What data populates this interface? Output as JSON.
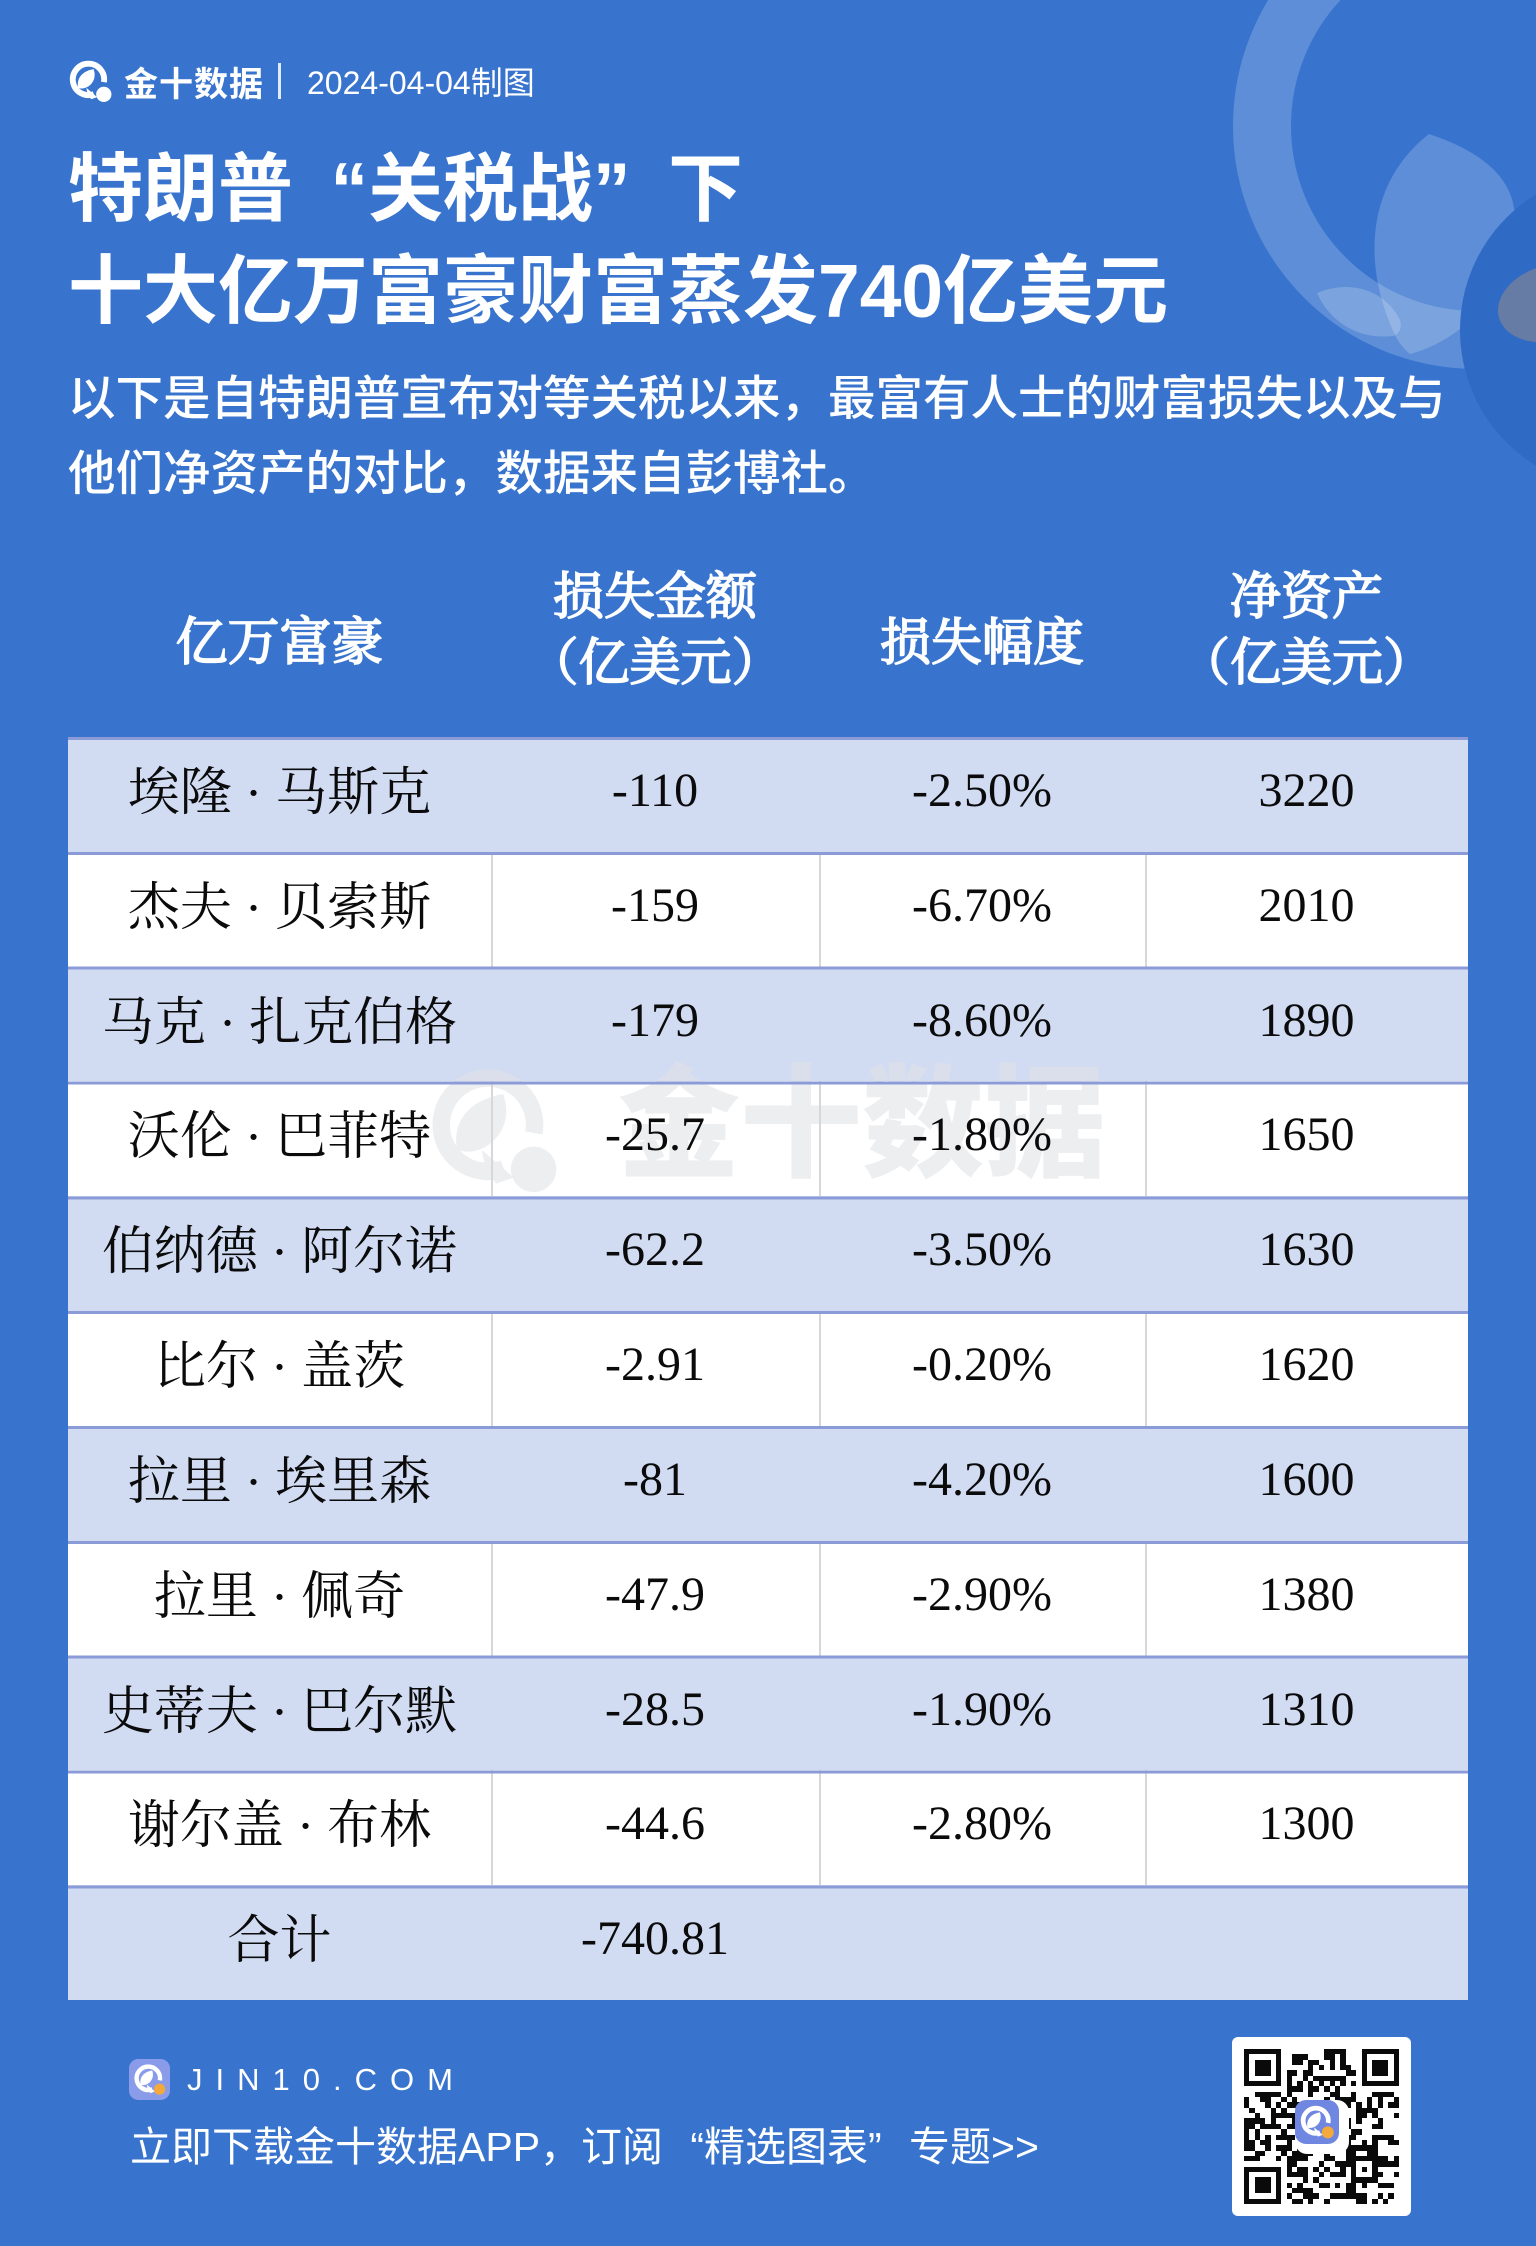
{
  "brand": {
    "name": "金十数据",
    "date_note": "2024-04-04制图"
  },
  "title_lines": [
    "特朗普“关税战”下",
    "十大亿万富豪财富蒸发740亿美元"
  ],
  "subtitle_lines": [
    "以下是自特朗普宣布对等关税以来，最富有人士的财富损失以及与",
    "他们净资产的对比，数据来自彭博社。"
  ],
  "watermark_text": "金十数据",
  "footer": {
    "site": "JIN10.COM",
    "tagline": "立即下载金十数据APP，订阅“精选图表”专题>>"
  },
  "colors": {
    "background": "#3874CE",
    "row_tint": "#D1DCF3",
    "row_white": "#FFFFFF",
    "separator": "#8B9BD8",
    "column_divider": "#D7D7D9",
    "text_dark": "#0B0B0C",
    "text_white": "#FFFFFF",
    "watermark": "#E1E2E6",
    "app_icon_blue": "#7D92E3",
    "nib_orange": "#F3A93C",
    "qr_black": "#0A0A0A"
  },
  "chart_data": {
    "type": "table",
    "title": "特朗普“关税战”下十大亿万富豪财富蒸发740亿美元",
    "columns": [
      "亿万富豪",
      "损失金额（亿美元）",
      "损失幅度",
      "净资产（亿美元）"
    ],
    "column_header_lines": [
      [
        "亿万富豪"
      ],
      [
        "损失金额",
        "（亿美元）"
      ],
      [
        "损失幅度"
      ],
      [
        "净资产",
        "（亿美元）"
      ]
    ],
    "rows": [
      {
        "name": "埃隆 · 马斯克",
        "loss": "-110",
        "pct": "-2.50%",
        "net": "3220"
      },
      {
        "name": "杰夫 · 贝索斯",
        "loss": "-159",
        "pct": "-6.70%",
        "net": "2010"
      },
      {
        "name": "马克 · 扎克伯格",
        "loss": "-179",
        "pct": "-8.60%",
        "net": "1890"
      },
      {
        "name": "沃伦 · 巴菲特",
        "loss": "-25.7",
        "pct": "-1.80%",
        "net": "1650"
      },
      {
        "name": "伯纳德 · 阿尔诺",
        "loss": "-62.2",
        "pct": "-3.50%",
        "net": "1630"
      },
      {
        "name": "比尔 · 盖茨",
        "loss": "-2.91",
        "pct": "-0.20%",
        "net": "1620"
      },
      {
        "name": "拉里 · 埃里森",
        "loss": "-81",
        "pct": "-4.20%",
        "net": "1600"
      },
      {
        "name": "拉里 · 佩奇",
        "loss": "-47.9",
        "pct": "-2.90%",
        "net": "1380"
      },
      {
        "name": "史蒂夫 · 巴尔默",
        "loss": "-28.5",
        "pct": "-1.90%",
        "net": "1310"
      },
      {
        "name": "谢尔盖 · 布林",
        "loss": "-44.6",
        "pct": "-2.80%",
        "net": "1300"
      }
    ],
    "total": {
      "label": "合计",
      "loss": "-740.81"
    },
    "source_note": "数据来自彭博社"
  }
}
